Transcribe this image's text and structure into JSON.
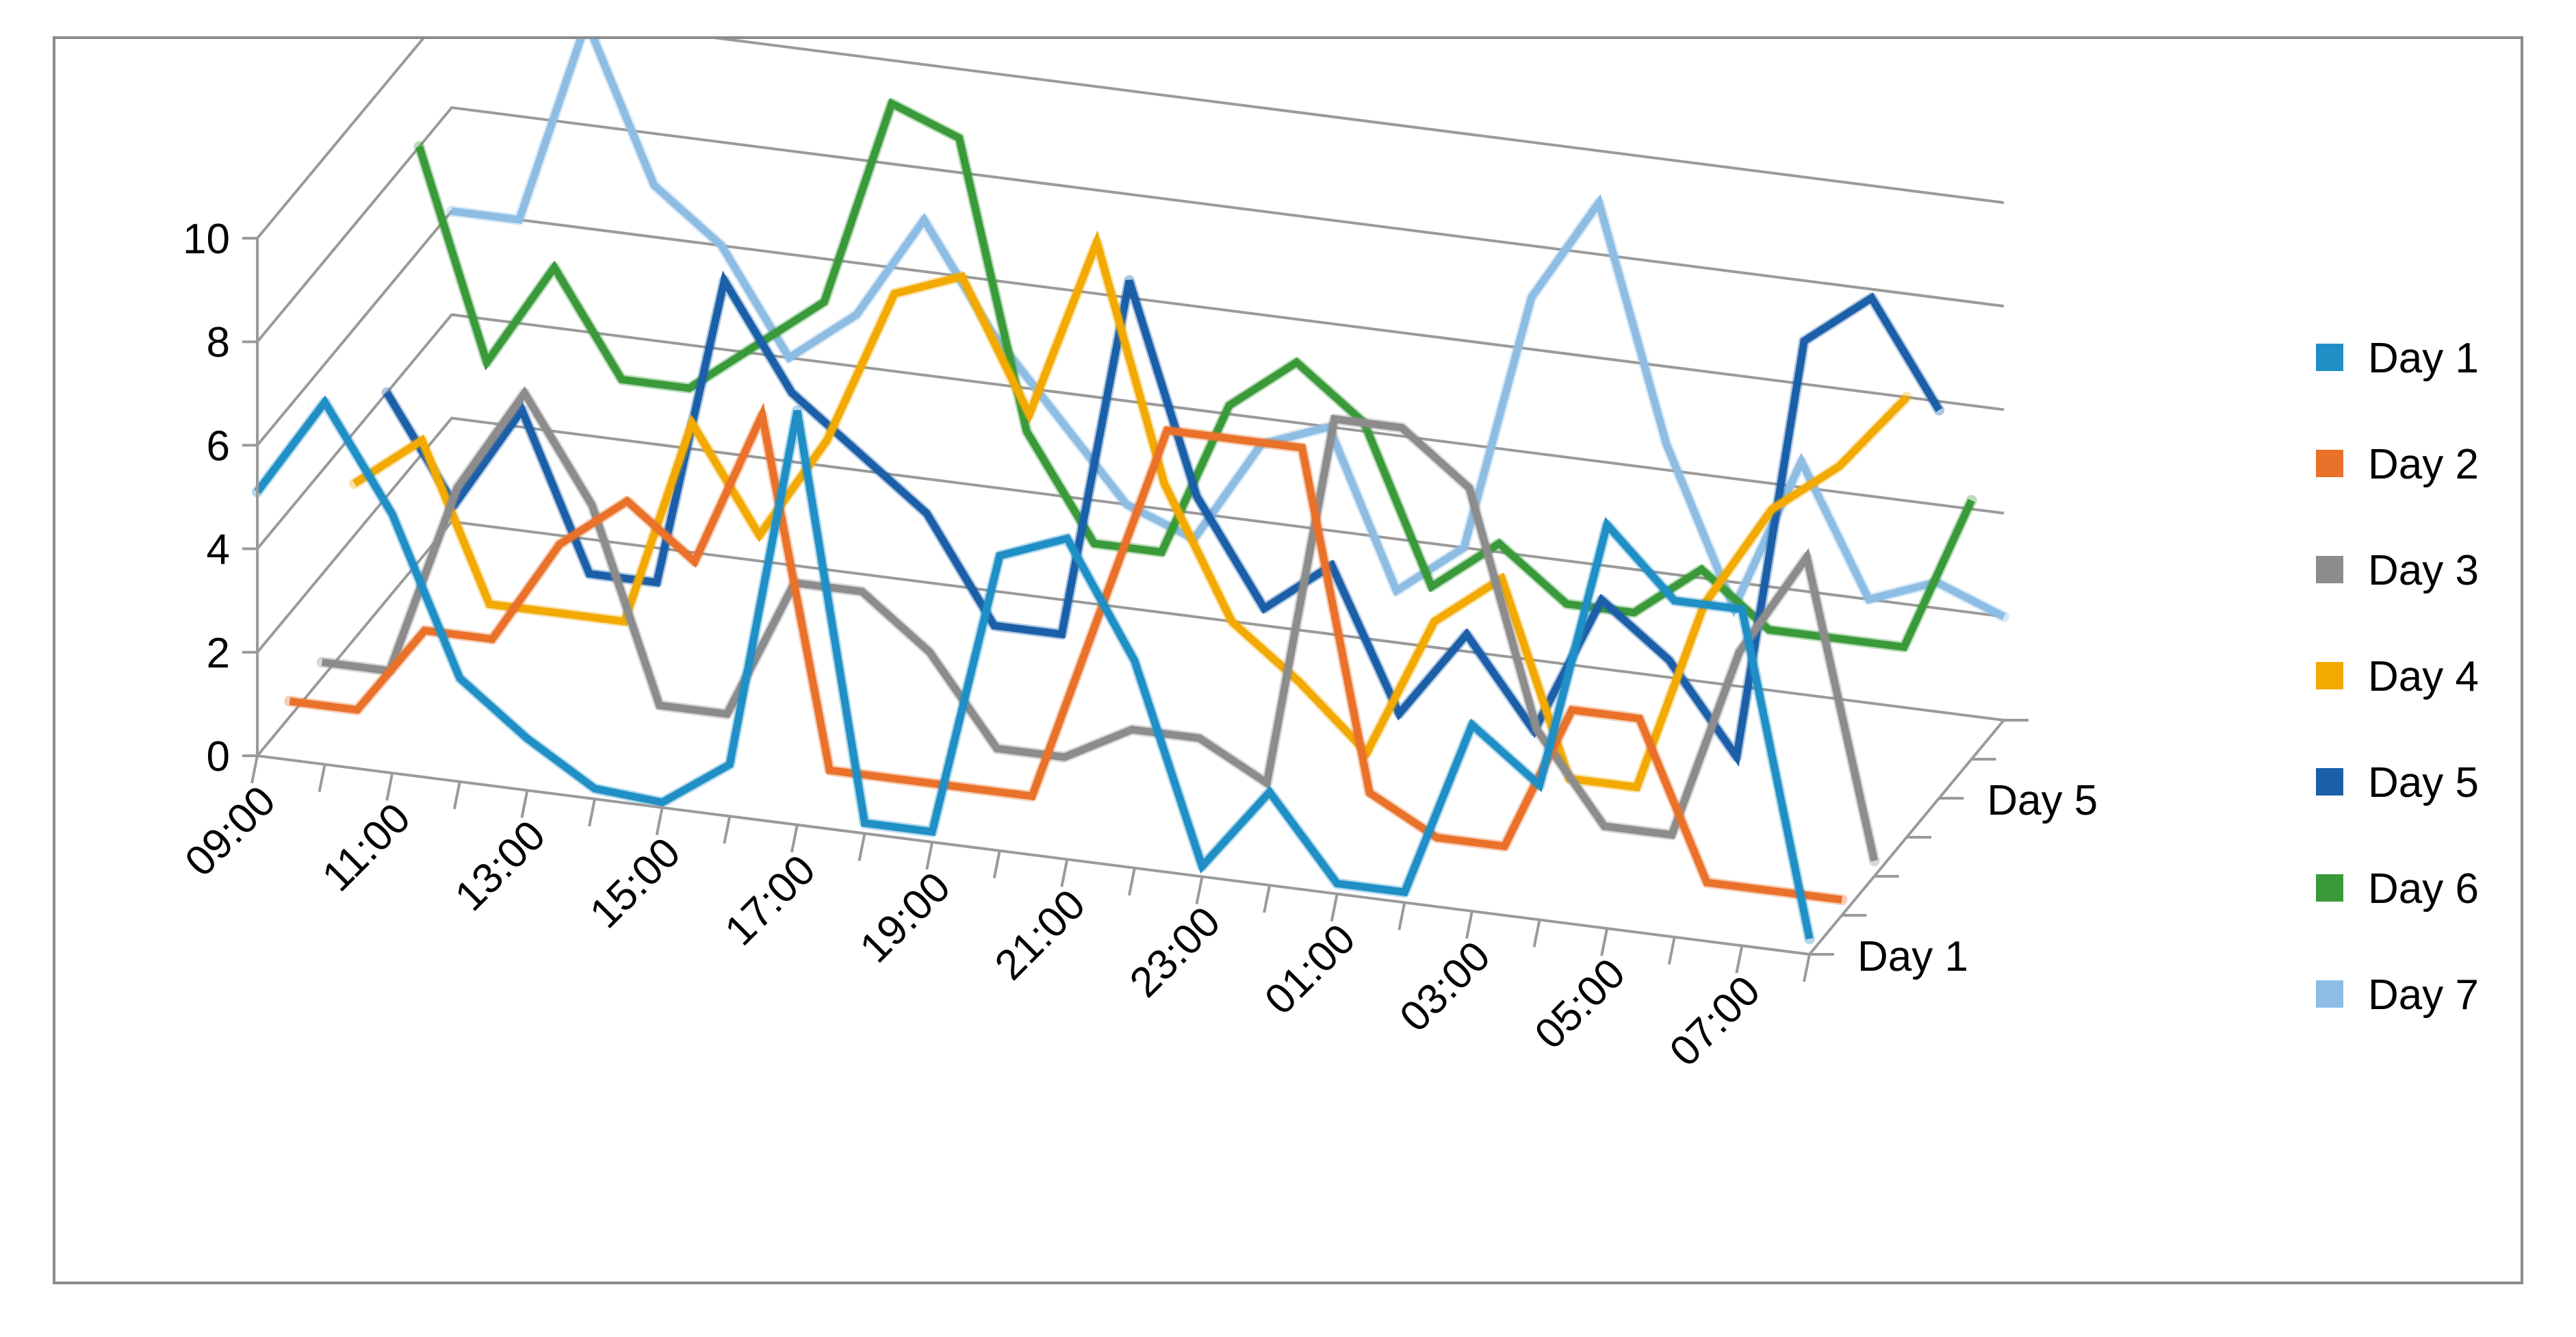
{
  "chart_data": {
    "type": "line",
    "subtype": "3d-line",
    "title": "",
    "xlabel": "",
    "ylabel": "",
    "ylim": [
      0,
      10
    ],
    "yticks": [
      0,
      2,
      4,
      6,
      8,
      10
    ],
    "x": [
      "09:00",
      "10:00",
      "11:00",
      "12:00",
      "13:00",
      "14:00",
      "15:00",
      "16:00",
      "17:00",
      "18:00",
      "19:00",
      "20:00",
      "21:00",
      "22:00",
      "23:00",
      "00:00",
      "01:00",
      "02:00",
      "03:00",
      "04:00",
      "05:00",
      "06:00",
      "07:00",
      "08:00"
    ],
    "x_tick_labels": [
      "09:00",
      "11:00",
      "13:00",
      "15:00",
      "17:00",
      "19:00",
      "21:00",
      "23:00",
      "01:00",
      "03:00",
      "05:00",
      "07:00"
    ],
    "depth_tick_labels": [
      "Day 1",
      "Day 5"
    ],
    "grid": true,
    "legend_position": "right",
    "series": [
      {
        "name": "Day 1",
        "color": "#1f8fc6",
        "values": [
          5.1,
          7.0,
          5.0,
          2.0,
          1.0,
          0.2,
          0.1,
          1.0,
          8.0,
          0.2,
          0.2,
          5.7,
          6.2,
          4.0,
          0.2,
          1.8,
          0.2,
          0.2,
          3.6,
          2.6,
          7.8,
          6.5,
          6.5,
          0.3
        ]
      },
      {
        "name": "Day 2",
        "color": "#e9712a",
        "values": [
          0.3,
          0.3,
          2.0,
          2.0,
          4.0,
          5.0,
          4.0,
          7.0,
          0.3,
          0.3,
          0.3,
          0.3,
          4.0,
          7.7,
          7.7,
          7.7,
          1.2,
          0.5,
          0.5,
          3.3,
          3.3,
          0.3,
          0.3,
          0.3
        ]
      },
      {
        "name": "Day 3",
        "color": "#8c8c8c",
        "values": [
          0.3,
          0.3,
          4.0,
          6.0,
          4.0,
          0.3,
          0.3,
          3.0,
          3.0,
          2.0,
          0.3,
          0.3,
          1.0,
          1.0,
          0.3,
          7.5,
          7.5,
          6.5,
          2.0,
          0.3,
          0.3,
          4.0,
          6.0,
          0.3
        ]
      },
      {
        "name": "Day 4",
        "color": "#f2a900",
        "values": [
          3.0,
          4.0,
          1.0,
          1.0,
          1.0,
          5.0,
          3.0,
          5.0,
          8.0,
          8.5,
          6.0,
          9.5,
          5.0,
          2.5,
          1.5,
          0.3,
          3.0,
          4.0,
          0.3,
          0.3,
          4.0,
          6.0,
          7.0,
          8.5
        ]
      },
      {
        "name": "Day 5",
        "color": "#1b5fa8",
        "values": [
          4.0,
          2.0,
          4.0,
          1.0,
          1.0,
          7.0,
          5.0,
          4.0,
          3.0,
          1.0,
          1.0,
          8.0,
          4.0,
          2.0,
          3.0,
          0.3,
          2.0,
          0.3,
          3.0,
          2.0,
          0.3,
          8.5,
          9.5,
          7.5
        ]
      },
      {
        "name": "Day 6",
        "color": "#3a9a3a",
        "values": [
          8.0,
          4.0,
          6.0,
          4.0,
          4.0,
          5.0,
          6.0,
          10.0,
          9.5,
          4.0,
          2.0,
          2.0,
          5.0,
          6.0,
          5.0,
          2.0,
          3.0,
          2.0,
          2.0,
          3.0,
          2.0,
          2.0,
          2.0,
          5.0
        ]
      },
      {
        "name": "Day 7",
        "color": "#8ebde4",
        "values": [
          6.0,
          6.0,
          10.0,
          7.0,
          6.0,
          4.0,
          5.0,
          7.0,
          5.0,
          3.5,
          2.0,
          1.5,
          3.5,
          4.0,
          1.0,
          2.0,
          7.0,
          9.0,
          4.5,
          1.5,
          4.5,
          2.0,
          2.5,
          2.0
        ]
      }
    ]
  }
}
